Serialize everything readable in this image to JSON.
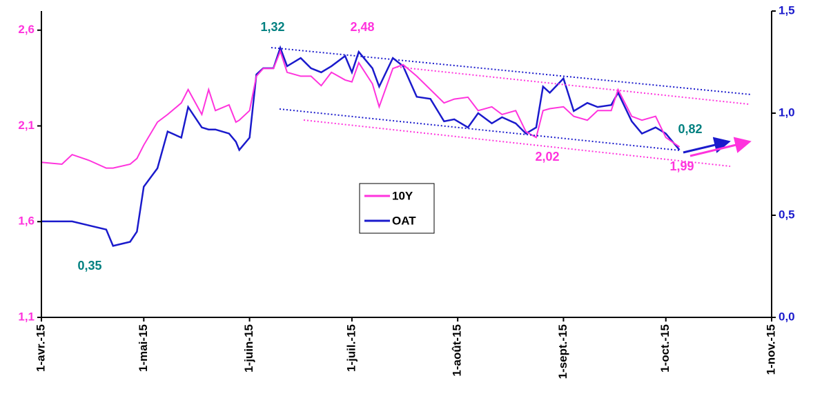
{
  "chart_data": {
    "type": "line",
    "x": [
      "2015-04-01",
      "2015-04-07",
      "2015-04-10",
      "2015-04-15",
      "2015-04-20",
      "2015-04-22",
      "2015-04-27",
      "2015-04-29",
      "2015-05-01",
      "2015-05-05",
      "2015-05-08",
      "2015-05-12",
      "2015-05-14",
      "2015-05-18",
      "2015-05-20",
      "2015-05-22",
      "2015-05-26",
      "2015-05-28",
      "2015-05-29",
      "2015-06-01",
      "2015-06-03",
      "2015-06-05",
      "2015-06-08",
      "2015-06-10",
      "2015-06-12",
      "2015-06-16",
      "2015-06-19",
      "2015-06-22",
      "2015-06-25",
      "2015-06-29",
      "2015-07-01",
      "2015-07-03",
      "2015-07-07",
      "2015-07-09",
      "2015-07-13",
      "2015-07-16",
      "2015-07-20",
      "2015-07-24",
      "2015-07-28",
      "2015-07-31",
      "2015-08-04",
      "2015-08-07",
      "2015-08-11",
      "2015-08-14",
      "2015-08-18",
      "2015-08-21",
      "2015-08-24",
      "2015-08-26",
      "2015-08-28",
      "2015-09-01",
      "2015-09-04",
      "2015-09-08",
      "2015-09-11",
      "2015-09-15",
      "2015-09-17",
      "2015-09-21",
      "2015-09-24",
      "2015-09-28",
      "2015-10-01",
      "2015-10-05"
    ],
    "series": [
      {
        "name": "10Y",
        "color": "#ff33dd",
        "axis": "y",
        "values": [
          1.91,
          1.9,
          1.95,
          1.92,
          1.88,
          1.88,
          1.9,
          1.93,
          2.0,
          2.12,
          2.16,
          2.22,
          2.29,
          2.16,
          2.29,
          2.18,
          2.21,
          2.12,
          2.13,
          2.18,
          2.36,
          2.4,
          2.4,
          2.49,
          2.38,
          2.36,
          2.36,
          2.31,
          2.38,
          2.34,
          2.33,
          2.43,
          2.32,
          2.2,
          2.4,
          2.42,
          2.36,
          2.29,
          2.22,
          2.24,
          2.25,
          2.18,
          2.2,
          2.16,
          2.18,
          2.07,
          2.04,
          2.18,
          2.19,
          2.2,
          2.15,
          2.13,
          2.18,
          2.18,
          2.29,
          2.15,
          2.13,
          2.15,
          2.04,
          1.99
        ]
      },
      {
        "name": "OAT",
        "color": "#1a1acc",
        "axis": "y2",
        "values": [
          0.47,
          0.47,
          0.47,
          0.45,
          0.43,
          0.35,
          0.37,
          0.42,
          0.64,
          0.73,
          0.91,
          0.88,
          1.03,
          0.93,
          0.92,
          0.92,
          0.9,
          0.86,
          0.82,
          0.88,
          1.19,
          1.22,
          1.22,
          1.32,
          1.23,
          1.27,
          1.22,
          1.2,
          1.23,
          1.28,
          1.2,
          1.3,
          1.22,
          1.13,
          1.27,
          1.23,
          1.08,
          1.07,
          0.96,
          0.97,
          0.93,
          1.0,
          0.95,
          0.98,
          0.95,
          0.9,
          0.93,
          1.13,
          1.1,
          1.17,
          1.01,
          1.05,
          1.03,
          1.04,
          1.1,
          0.96,
          0.9,
          0.93,
          0.9,
          0.82
        ]
      }
    ],
    "xlim": [
      "2015-04-01",
      "2015-11-01"
    ],
    "xticks": [
      {
        "value": "2015-04-01",
        "label": "1-avr.-15"
      },
      {
        "value": "2015-05-01",
        "label": "1-mai-15"
      },
      {
        "value": "2015-06-01",
        "label": "1-juin-15"
      },
      {
        "value": "2015-07-01",
        "label": "1-juil.-15"
      },
      {
        "value": "2015-08-01",
        "label": "1-août-15"
      },
      {
        "value": "2015-09-01",
        "label": "1-sept.-15"
      },
      {
        "value": "2015-10-01",
        "label": "1-oct.-15"
      },
      {
        "value": "2015-11-01",
        "label": "1-nov.-15"
      }
    ],
    "ylim": [
      1.1,
      2.7
    ],
    "yticks": [
      {
        "value": 1.1,
        "label": "1,1"
      },
      {
        "value": 1.6,
        "label": "1,6"
      },
      {
        "value": 2.1,
        "label": "2,1"
      },
      {
        "value": 2.6,
        "label": "2,6"
      }
    ],
    "y2lim": [
      0,
      1.5
    ],
    "y2ticks": [
      {
        "value": 0,
        "label": "0,0"
      },
      {
        "value": 0.5,
        "label": "0,5"
      },
      {
        "value": 1.0,
        "label": "1,0"
      },
      {
        "value": 1.5,
        "label": "1,5"
      }
    ],
    "annotations": [
      {
        "text": "1,32",
        "color": "#008080"
      },
      {
        "text": "2,48",
        "color": "#ff33dd"
      },
      {
        "text": "0,35",
        "color": "#008080"
      },
      {
        "text": "2,02",
        "color": "#ff33dd"
      },
      {
        "text": "1,99",
        "color": "#ff33dd"
      },
      {
        "text": "0,82",
        "color": "#008080"
      }
    ]
  }
}
